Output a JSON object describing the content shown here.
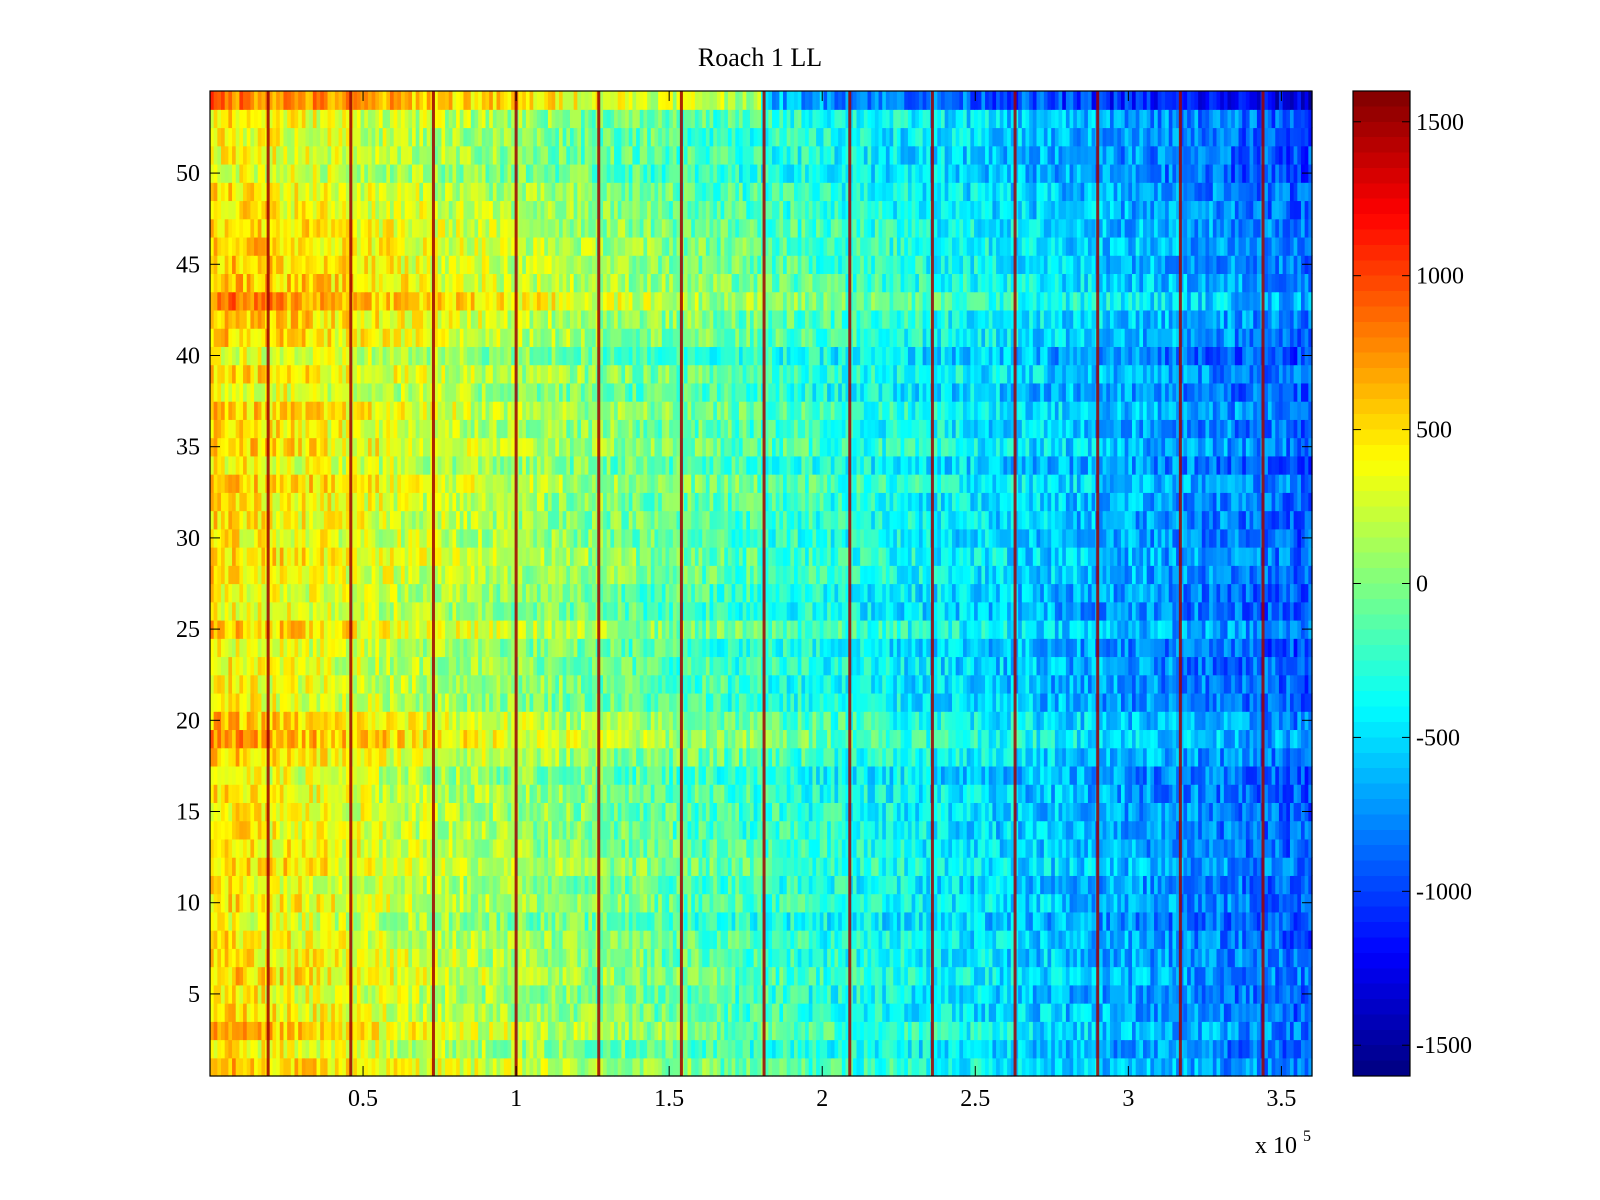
{
  "chart_data": [
    {
      "type": "heatmap",
      "title": "Roach 1 LL",
      "xlabel": "",
      "ylabel": "",
      "x_exponent_label": "x 10",
      "x_exponent_power": "5",
      "xlim": [
        0,
        3.6
      ],
      "ylim": [
        0.5,
        54.5
      ],
      "x_ticks": [
        0.5,
        1,
        1.5,
        2,
        2.5,
        3,
        3.5
      ],
      "x_tick_labels": [
        "0.5",
        "1",
        "1.5",
        "2",
        "2.5",
        "3",
        "3.5"
      ],
      "y_ticks": [
        5,
        10,
        15,
        20,
        25,
        30,
        35,
        40,
        45,
        50
      ],
      "y_tick_labels": [
        "5",
        "10",
        "15",
        "20",
        "25",
        "30",
        "35",
        "40",
        "45",
        "50"
      ],
      "rows": 54,
      "colormap": "jet",
      "color_range": [
        -1600,
        1600
      ],
      "trend": {
        "x_units": "x 10^5",
        "value_at_x_start": 500,
        "value_at_x_end": -900,
        "top_row_extra": 350,
        "description_rows_high": [
          42,
          43,
          44,
          19,
          25
        ]
      },
      "spike_columns_x": [
        0.19,
        0.46,
        0.73,
        1.0,
        1.27,
        1.54,
        1.81,
        2.09,
        2.36,
        2.63,
        2.9,
        3.17,
        3.44
      ],
      "spike_value": 1500
    },
    {
      "type": "colorbar",
      "range": [
        -1600,
        1600
      ],
      "ticks": [
        -1500,
        -1000,
        -500,
        0,
        500,
        1000,
        1500
      ],
      "tick_labels": [
        "-1500",
        "-1000",
        "-500",
        "0",
        "500",
        "1000",
        "1500"
      ],
      "colormap": "jet"
    }
  ]
}
